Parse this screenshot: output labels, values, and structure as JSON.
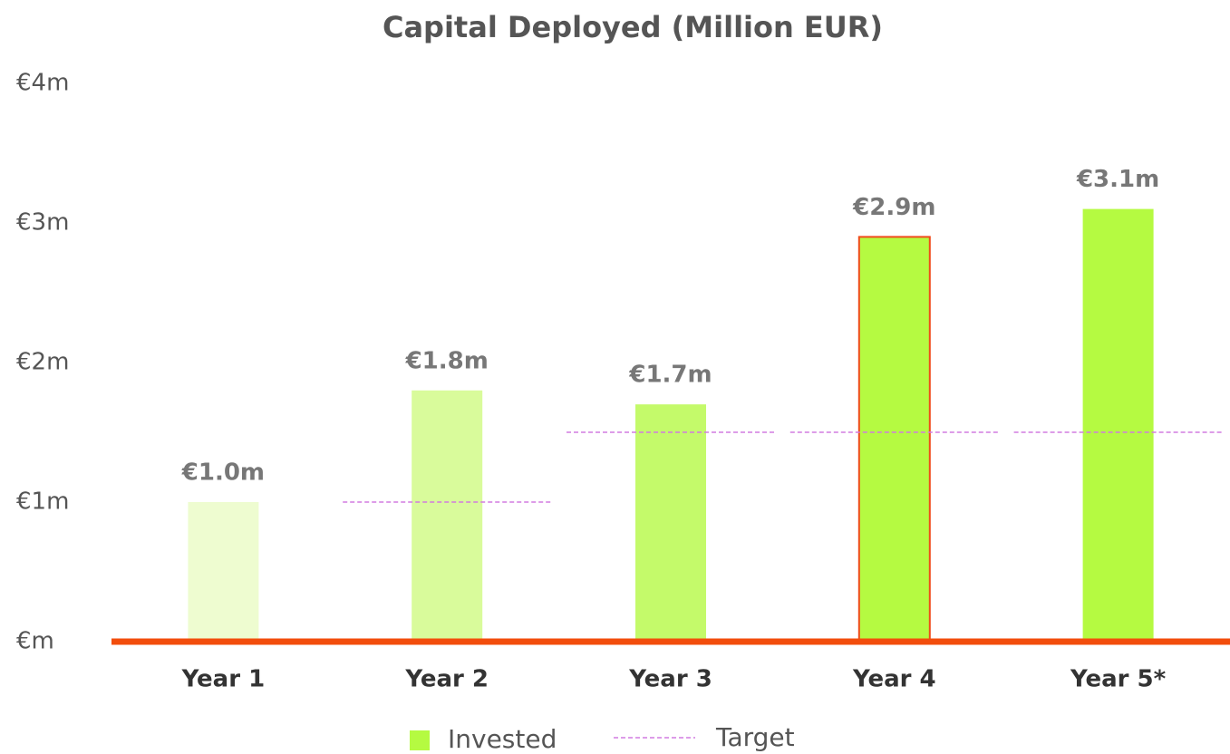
{
  "chart_data": {
    "type": "bar",
    "title": "Capital Deployed (Million EUR)",
    "categories": [
      "Year 1",
      "Year 2",
      "Year 3",
      "Year 4",
      "Year 5*"
    ],
    "series": [
      {
        "name": "Invested",
        "values": [
          1.0,
          1.8,
          1.7,
          2.9,
          3.1
        ],
        "value_labels": [
          "€1.0m",
          "€1.8m",
          "€1.7m",
          "€2.9m",
          "€3.1m"
        ],
        "color": "#b5fa41",
        "colors": [
          "#eefcd0",
          "#d9fb9b",
          "#c4fa6a",
          "#b5fa41",
          "#b5fa41"
        ]
      },
      {
        "name": "Target",
        "type": "line",
        "values": [
          null,
          1.0,
          1.5,
          1.5,
          1.5
        ],
        "color": "#d27be0"
      }
    ],
    "highlight": "Year 4",
    "highlight_color": "#f04a1a",
    "axis_color": "#f24d0c",
    "ylim": [
      0,
      4
    ],
    "yticks": [
      {
        "value": 0,
        "label": "€m"
      },
      {
        "value": 1,
        "label": "€1m"
      },
      {
        "value": 2,
        "label": "€2m"
      },
      {
        "value": 3,
        "label": "€3m"
      },
      {
        "value": 4,
        "label": "€4m"
      }
    ],
    "grid": false,
    "legend": "bottom"
  }
}
